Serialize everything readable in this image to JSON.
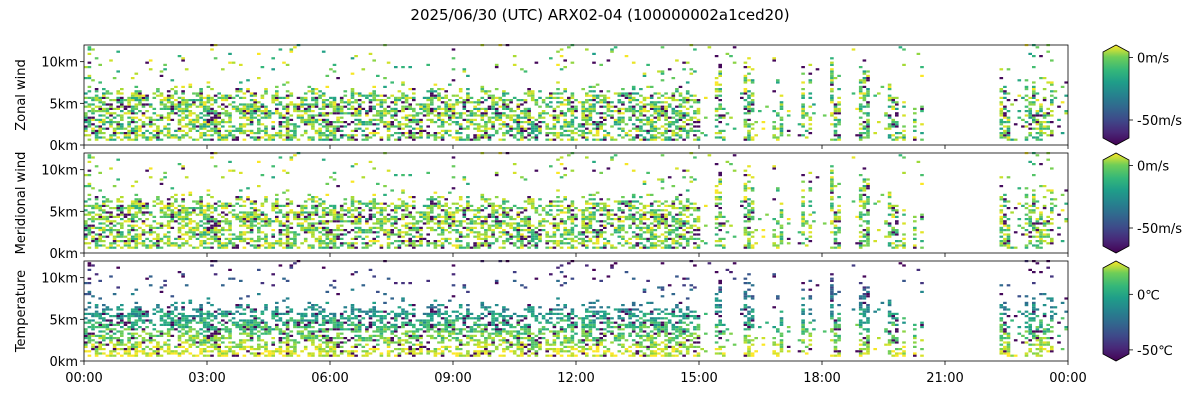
{
  "title": "2025/06/30 (UTC) ARX02-04 (100000002a1ced20)",
  "chart_data": {
    "type": "heatmap",
    "title": "2025/06/30 (UTC) ARX02-04 (100000002a1ced20)",
    "x_axis": {
      "label": "",
      "range": [
        "00:00",
        "24:00"
      ],
      "range_hours": [
        0,
        24
      ],
      "ticks": [
        {
          "hour": 0,
          "label": "00:00"
        },
        {
          "hour": 3,
          "label": "03:00"
        },
        {
          "hour": 6,
          "label": "06:00"
        },
        {
          "hour": 9,
          "label": "09:00"
        },
        {
          "hour": 12,
          "label": "12:00"
        },
        {
          "hour": 15,
          "label": "15:00"
        },
        {
          "hour": 18,
          "label": "18:00"
        },
        {
          "hour": 21,
          "label": "21:00"
        },
        {
          "hour": 24,
          "label": "00:00"
        }
      ]
    },
    "panels": [
      {
        "ylabel": "Zonal wind",
        "yticks": [
          {
            "km": 0,
            "label": "0km"
          },
          {
            "km": 5,
            "label": "5km"
          },
          {
            "km": 10,
            "label": "10km"
          }
        ],
        "ylim_km": [
          0,
          12
        ],
        "colorbar": {
          "colormap": "viridis",
          "extend": "both",
          "range": [
            -70,
            10
          ],
          "unit": "m/s",
          "ticks": [
            {
              "value": 0,
              "label": "0m/s"
            },
            {
              "value": -50,
              "label": "-50m/s"
            }
          ]
        }
      },
      {
        "ylabel": "Meridional wind",
        "yticks": [
          {
            "km": 0,
            "label": "0km"
          },
          {
            "km": 5,
            "label": "5km"
          },
          {
            "km": 10,
            "label": "10km"
          }
        ],
        "ylim_km": [
          0,
          12
        ],
        "colorbar": {
          "colormap": "viridis",
          "extend": "both",
          "range": [
            -70,
            10
          ],
          "unit": "m/s",
          "ticks": [
            {
              "value": 0,
              "label": "0m/s"
            },
            {
              "value": -50,
              "label": "-50m/s"
            }
          ]
        }
      },
      {
        "ylabel": "Temperature",
        "yticks": [
          {
            "km": 0,
            "label": "0km"
          },
          {
            "km": 5,
            "label": "5km"
          },
          {
            "km": 10,
            "label": "10km"
          }
        ],
        "ylim_km": [
          0,
          12
        ],
        "colorbar": {
          "colormap": "viridis",
          "extend": "both",
          "range": [
            -60,
            30
          ],
          "unit": "℃",
          "ticks": [
            {
              "value": 0,
              "label": "0℃"
            },
            {
              "value": -50,
              "label": "-50℃"
            }
          ]
        }
      }
    ],
    "data_coverage": {
      "main_layer_km": [
        0.5,
        6
      ],
      "upper_isolated_km": [
        10,
        12
      ],
      "dense_hours": [
        0,
        15
      ],
      "sparse_streaks_hours": [
        16,
        20
      ],
      "gap_hours": [
        20,
        22.3
      ],
      "late_column_hours": [
        22.3,
        24
      ]
    }
  }
}
